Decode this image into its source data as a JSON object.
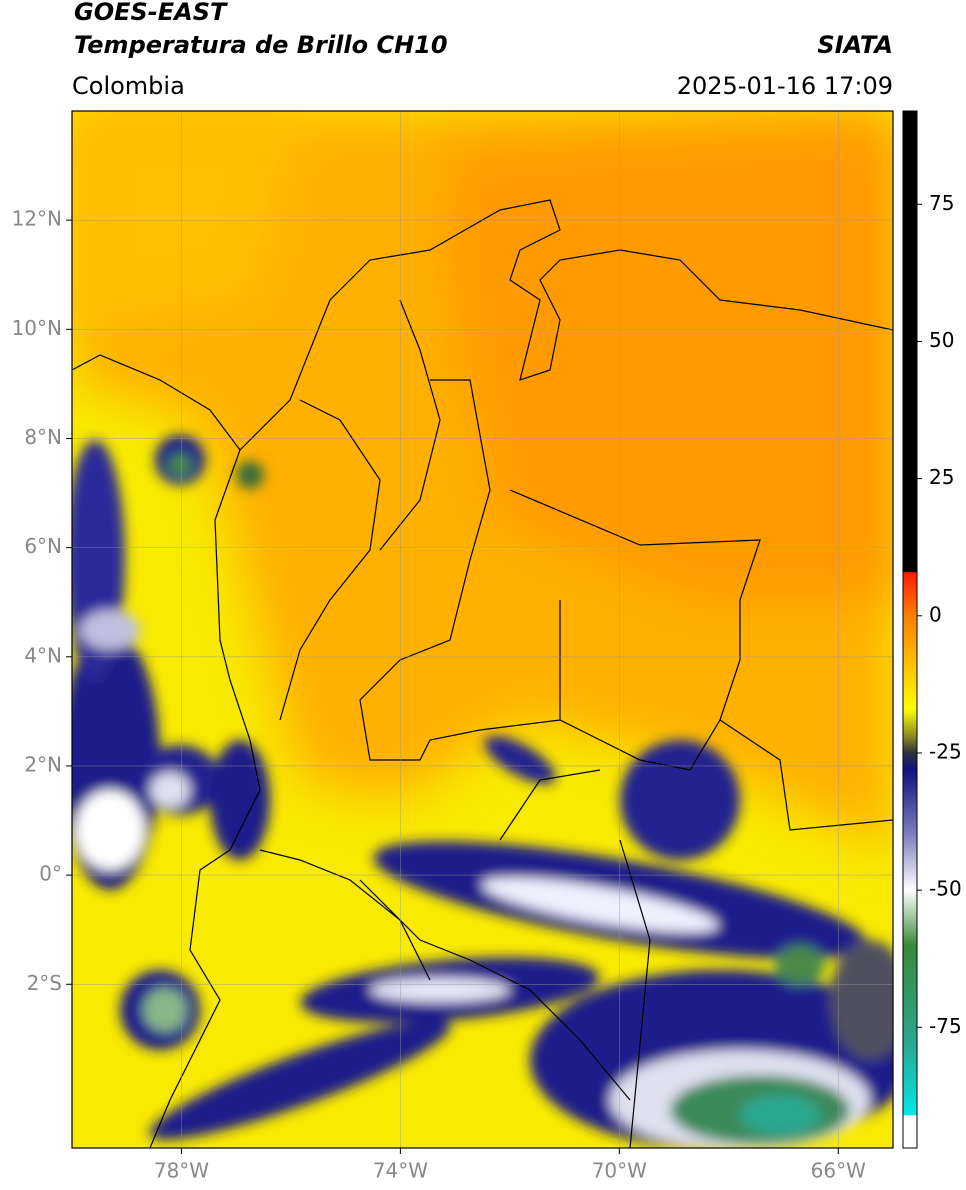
{
  "header": {
    "title": "GOES-EAST",
    "subtitle": "Temperatura de Brillo CH10",
    "source": "SIATA",
    "region": "Colombia",
    "datetime": "2025-01-16 17:09"
  },
  "map": {
    "xlim": [
      -80,
      -65
    ],
    "ylim": [
      -5,
      14
    ],
    "xticks": [
      {
        "value": -78,
        "label": "78°W"
      },
      {
        "value": -74,
        "label": "74°W"
      },
      {
        "value": -70,
        "label": "70°W"
      },
      {
        "value": -66,
        "label": "66°W"
      }
    ],
    "yticks": [
      {
        "value": 12,
        "label": "12°N"
      },
      {
        "value": 10,
        "label": "10°N"
      },
      {
        "value": 8,
        "label": "8°N"
      },
      {
        "value": 6,
        "label": "6°N"
      },
      {
        "value": 4,
        "label": "4°N"
      },
      {
        "value": 2,
        "label": "2°N"
      },
      {
        "value": 0,
        "label": "0°"
      },
      {
        "value": -2,
        "label": "2°S"
      }
    ],
    "grid": true
  },
  "colorbar": {
    "lim": [
      -97,
      92
    ],
    "ticks": [
      75,
      50,
      25,
      0,
      -25,
      -50,
      -75
    ],
    "stops": [
      {
        "value": 92,
        "color": "#000000"
      },
      {
        "value": 8,
        "color": "#000000"
      },
      {
        "value": 7.9,
        "color": "#ff1a00"
      },
      {
        "value": 0,
        "color": "#ff8000"
      },
      {
        "value": -12,
        "color": "#ffd800"
      },
      {
        "value": -17,
        "color": "#ffff00"
      },
      {
        "value": -22,
        "color": "#8a8a20"
      },
      {
        "value": -25,
        "color": "#303040"
      },
      {
        "value": -28,
        "color": "#101080"
      },
      {
        "value": -40,
        "color": "#8080c0"
      },
      {
        "value": -50,
        "color": "#ffffff"
      },
      {
        "value": -60,
        "color": "#3a8a3a"
      },
      {
        "value": -78,
        "color": "#2aa890"
      },
      {
        "value": -91,
        "color": "#00e8e8"
      },
      {
        "value": -91.1,
        "color": "#ffffff"
      },
      {
        "value": -97,
        "color": "#ffffff"
      }
    ]
  }
}
